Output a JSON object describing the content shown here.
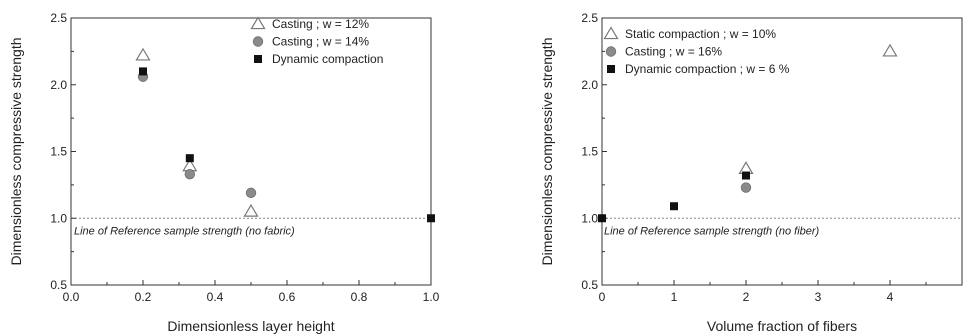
{
  "chart_data": [
    {
      "type": "scatter",
      "xlabel": "Dimensionless layer height",
      "ylabel": "Dimensionless compressive strength",
      "xlim": [
        0.0,
        1.0
      ],
      "ylim": [
        0.5,
        2.5
      ],
      "xticks": [
        0.0,
        0.2,
        0.4,
        0.6,
        0.8,
        1.0
      ],
      "xtick_labels": [
        "0.0",
        "0.2",
        "0.4",
        "0.6",
        "0.8",
        "1.0"
      ],
      "yticks": [
        0.5,
        1.0,
        1.5,
        2.0,
        2.5
      ],
      "ytick_labels": [
        "0.5",
        "1.0",
        "1.5",
        "2.0",
        "2.5"
      ],
      "grid": false,
      "legend_position": "top-right",
      "reference_line": {
        "y": 1.0,
        "label": "Line of Reference sample strength (no fabric)"
      },
      "series": [
        {
          "name": "Casting ; w = 12%",
          "marker": "open-triangle",
          "color": "#777777",
          "points": [
            [
              0.2,
              2.22
            ],
            [
              0.33,
              1.39
            ],
            [
              0.5,
              1.05
            ]
          ]
        },
        {
          "name": "Casting ; w = 14%",
          "marker": "filled-circle",
          "color": "#8a8a8a",
          "points": [
            [
              0.2,
              2.06
            ],
            [
              0.33,
              1.33
            ],
            [
              0.5,
              1.19
            ]
          ]
        },
        {
          "name": "Dynamic compaction",
          "marker": "filled-square",
          "color": "#111111",
          "points": [
            [
              0.2,
              2.1
            ],
            [
              0.33,
              1.45
            ],
            [
              1.0,
              1.0
            ]
          ]
        }
      ]
    },
    {
      "type": "scatter",
      "xlabel": "Volume fraction of fibers",
      "ylabel": "Dimensionless compressive strength",
      "xlim": [
        0,
        5
      ],
      "ylim": [
        0.5,
        2.5
      ],
      "xticks": [
        0,
        1,
        2,
        3,
        4
      ],
      "xtick_labels": [
        "0",
        "1",
        "2",
        "3",
        "4"
      ],
      "yticks": [
        0.5,
        1.0,
        1.5,
        2.0,
        2.5
      ],
      "ytick_labels": [
        "0.5",
        "1.0",
        "1.5",
        "2.0",
        "2.5"
      ],
      "grid": false,
      "legend_position": "top-left",
      "reference_line": {
        "y": 1.0,
        "label": "Line of Reference sample strength (no fiber)"
      },
      "series": [
        {
          "name": "Static compaction ; w = 10%",
          "marker": "open-triangle",
          "color": "#777777",
          "points": [
            [
              2,
              1.37
            ],
            [
              4,
              2.25
            ]
          ]
        },
        {
          "name": "Casting ; w = 16%",
          "marker": "filled-circle",
          "color": "#8a8a8a",
          "points": [
            [
              2,
              1.23
            ]
          ]
        },
        {
          "name": "Dynamic compaction ; w = 6 %",
          "marker": "filled-square",
          "color": "#111111",
          "points": [
            [
              0,
              1.0
            ],
            [
              1,
              1.09
            ],
            [
              2,
              1.32
            ]
          ]
        }
      ]
    }
  ]
}
